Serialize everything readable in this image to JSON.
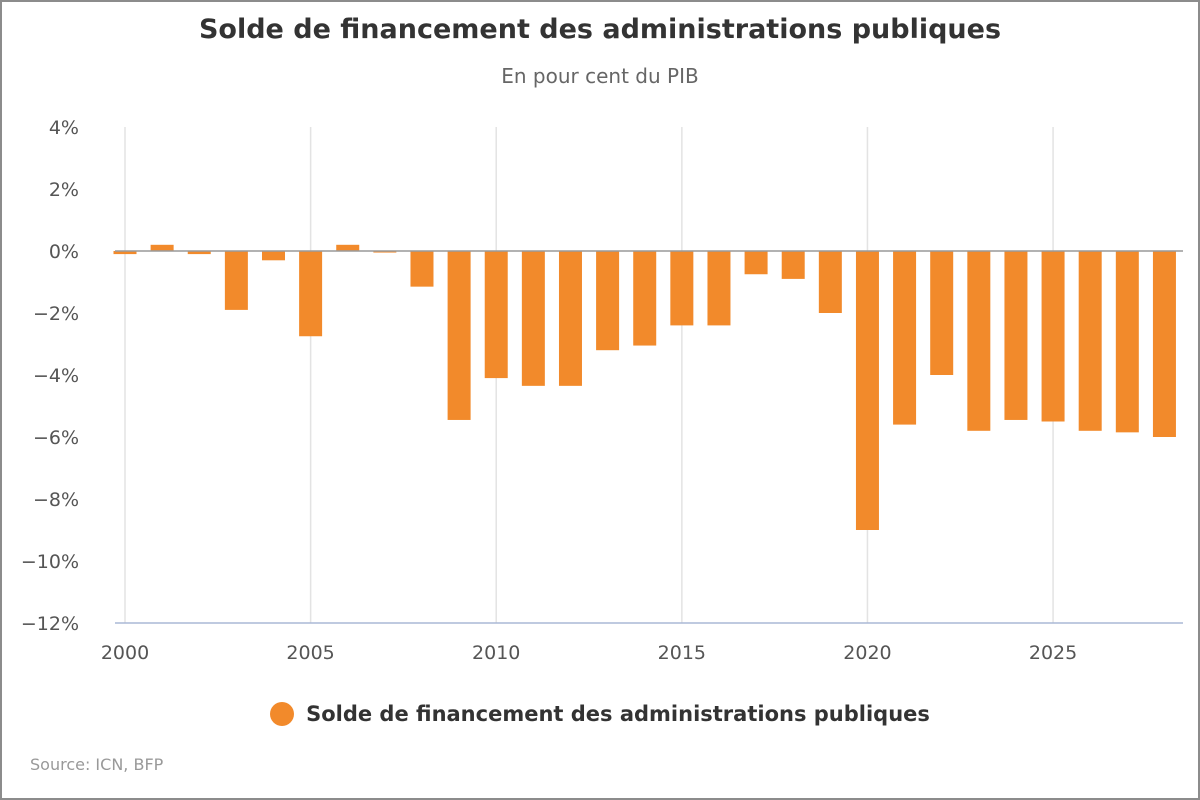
{
  "chart_data": {
    "type": "bar",
    "title": "Solde de financement des administrations publiques",
    "subtitle": "En pour cent du PIB",
    "xlabel": "",
    "ylabel": "",
    "source": "Source: ICN, BFP",
    "x": [
      2000,
      2001,
      2002,
      2003,
      2004,
      2005,
      2006,
      2007,
      2008,
      2009,
      2010,
      2011,
      2012,
      2013,
      2014,
      2015,
      2016,
      2017,
      2018,
      2019,
      2020,
      2021,
      2022,
      2023,
      2024,
      2025,
      2026,
      2027,
      2028
    ],
    "series": [
      {
        "name": "Solde de financement des administrations publiques",
        "color": "#f28a2b",
        "values": [
          -0.1,
          0.2,
          -0.1,
          -1.9,
          -0.3,
          -2.75,
          0.2,
          -0.05,
          -1.15,
          -5.45,
          -4.1,
          -4.35,
          -4.35,
          -3.2,
          -3.05,
          -2.4,
          -2.4,
          -0.75,
          -0.9,
          -2.0,
          -9.0,
          -5.6,
          -4.0,
          -5.8,
          -5.45,
          -5.5,
          -5.8,
          -5.85,
          -6.0
        ]
      }
    ],
    "xticks": [
      2000,
      2005,
      2010,
      2015,
      2020,
      2025
    ],
    "xtick_labels": [
      "2000",
      "2005",
      "2010",
      "2015",
      "2020",
      "2025"
    ],
    "yticks": [
      4,
      2,
      0,
      -2,
      -4,
      -6,
      -8,
      -10,
      -12
    ],
    "ytick_labels": [
      "4%",
      "2%",
      "0%",
      "−2%",
      "−4%",
      "−6%",
      "−8%",
      "−10%",
      "−12%"
    ],
    "ylim": [
      -12,
      4
    ],
    "xlim": [
      2000,
      2028.5
    ],
    "grid": "vertical",
    "legend": "bottom-center"
  }
}
